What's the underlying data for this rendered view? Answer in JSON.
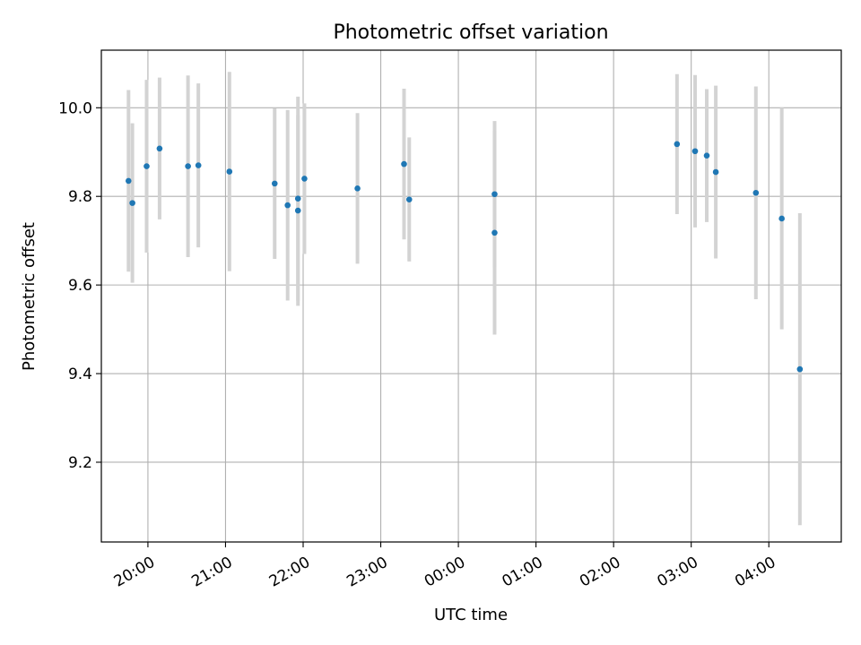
{
  "chart_data": {
    "type": "scatter",
    "title": "Photometric offset variation",
    "xlabel": "UTC time",
    "ylabel": "Photometric offset",
    "x_unit": "UTC time (hours, after 00:00 wraps past 24)",
    "xlim": [
      "19:24",
      "04:56"
    ],
    "ylim": [
      9.02,
      10.13
    ],
    "grid": true,
    "x_ticks": [
      "20:00",
      "21:00",
      "22:00",
      "23:00",
      "00:00",
      "01:00",
      "02:00",
      "03:00",
      "04:00"
    ],
    "y_ticks": [
      "9.2",
      "9.4",
      "9.6",
      "9.8",
      "10.0"
    ],
    "colors": {
      "points": "#1f77b4",
      "errorbars": "#d3d3d3",
      "grid": "#b0b0b0"
    },
    "points": [
      {
        "time": "19:45",
        "y": 9.835,
        "err": 0.205
      },
      {
        "time": "19:48",
        "y": 9.785,
        "err": 0.18
      },
      {
        "time": "19:59",
        "y": 9.868,
        "err": 0.195
      },
      {
        "time": "20:09",
        "y": 9.908,
        "err": 0.16
      },
      {
        "time": "20:31",
        "y": 9.868,
        "err": 0.205
      },
      {
        "time": "20:39",
        "y": 9.87,
        "err": 0.185
      },
      {
        "time": "21:03",
        "y": 9.856,
        "err": 0.225
      },
      {
        "time": "21:38",
        "y": 9.829,
        "err": 0.17
      },
      {
        "time": "21:48",
        "y": 9.78,
        "err": 0.215
      },
      {
        "time": "21:56",
        "y": 9.795,
        "err": 0.23
      },
      {
        "time": "21:56",
        "y": 9.768,
        "err": 0.215
      },
      {
        "time": "22:01",
        "y": 9.84,
        "err": 0.17
      },
      {
        "time": "22:42",
        "y": 9.818,
        "err": 0.17
      },
      {
        "time": "23:18",
        "y": 9.873,
        "err": 0.17
      },
      {
        "time": "23:22",
        "y": 9.793,
        "err": 0.14
      },
      {
        "time": "00:28",
        "y": 9.805,
        "err": 0.165
      },
      {
        "time": "00:28",
        "y": 9.718,
        "err": 0.23
      },
      {
        "time": "02:49",
        "y": 9.918,
        "err": 0.158
      },
      {
        "time": "03:03",
        "y": 9.902,
        "err": 0.172
      },
      {
        "time": "03:12",
        "y": 9.892,
        "err": 0.15
      },
      {
        "time": "03:19",
        "y": 9.855,
        "err": 0.195
      },
      {
        "time": "03:50",
        "y": 9.808,
        "err": 0.24
      },
      {
        "time": "04:10",
        "y": 9.75,
        "err": 0.25
      },
      {
        "time": "04:24",
        "y": 9.41,
        "err": 0.352
      }
    ]
  }
}
